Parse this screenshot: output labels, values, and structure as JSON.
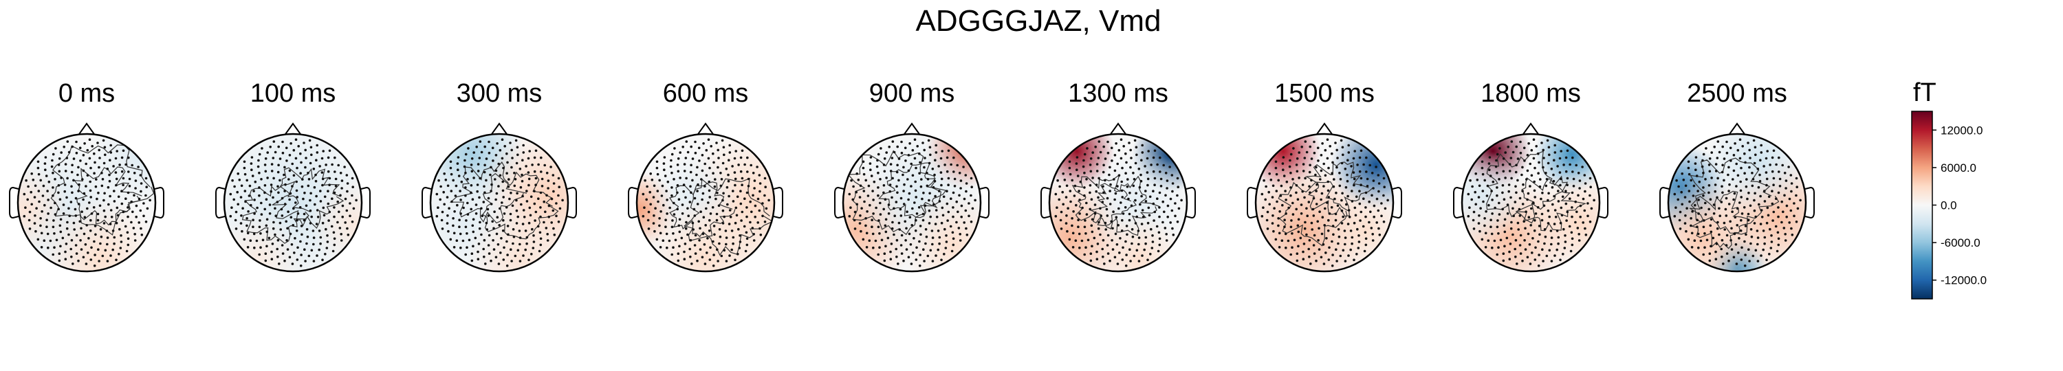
{
  "chart_data": {
    "type": "heatmap",
    "title": "ADGGGJAZ, Vmd",
    "unit_label": "fT",
    "colormap": "RdBu_r",
    "colors": {
      "max": "#67001f",
      "pos": "#e07b5f",
      "zero": "#f7f7f7",
      "neg": "#5a9bc8",
      "min": "#053061"
    },
    "clim": [
      -15000,
      15000
    ],
    "colorbar_ticks": [
      12000,
      6000,
      0,
      -6000,
      -12000
    ],
    "colorbar_tick_labels": [
      "12000.0",
      "6000.0",
      "0.0",
      "-6000.0",
      "-12000.0"
    ],
    "grid": false,
    "panels": [
      {
        "label": "0 ms",
        "time_ms": 0,
        "sources": [
          {
            "x": -0.4,
            "y": -0.1,
            "amp": -2000,
            "w": 0.5
          },
          {
            "x": 0.2,
            "y": -0.8,
            "amp": 2500,
            "w": 0.4
          },
          {
            "x": -0.9,
            "y": -0.1,
            "amp": 2000,
            "w": 0.3
          },
          {
            "x": 0.8,
            "y": 0.7,
            "amp": -2000,
            "w": 0.35
          }
        ]
      },
      {
        "label": "100 ms",
        "time_ms": 100,
        "sources": [
          {
            "x": 0.0,
            "y": 0.0,
            "amp": -2500,
            "w": 0.6
          },
          {
            "x": 0.9,
            "y": -0.3,
            "amp": 1500,
            "w": 0.3
          },
          {
            "x": -0.5,
            "y": -0.8,
            "amp": 1200,
            "w": 0.3
          }
        ]
      },
      {
        "label": "300 ms",
        "time_ms": 300,
        "sources": [
          {
            "x": -0.4,
            "y": 0.7,
            "amp": -5000,
            "w": 0.35
          },
          {
            "x": 0.7,
            "y": 0.1,
            "amp": 3500,
            "w": 0.45
          },
          {
            "x": -0.5,
            "y": -0.3,
            "amp": -1500,
            "w": 0.4
          },
          {
            "x": 0.3,
            "y": -0.8,
            "amp": 2000,
            "w": 0.35
          }
        ]
      },
      {
        "label": "600 ms",
        "time_ms": 600,
        "sources": [
          {
            "x": -0.95,
            "y": -0.1,
            "amp": 6000,
            "w": 0.25
          },
          {
            "x": 0.7,
            "y": 0.0,
            "amp": 3000,
            "w": 0.5
          },
          {
            "x": -0.2,
            "y": 0.1,
            "amp": -1500,
            "w": 0.3
          },
          {
            "x": 0.0,
            "y": -0.8,
            "amp": 2500,
            "w": 0.4
          }
        ]
      },
      {
        "label": "900 ms",
        "time_ms": 900,
        "sources": [
          {
            "x": 0.75,
            "y": 0.75,
            "amp": 9000,
            "w": 0.25
          },
          {
            "x": -0.8,
            "y": -0.4,
            "amp": 4500,
            "w": 0.4
          },
          {
            "x": 0.1,
            "y": 0.1,
            "amp": -2000,
            "w": 0.45
          },
          {
            "x": 0.6,
            "y": -0.6,
            "amp": 2500,
            "w": 0.35
          }
        ]
      },
      {
        "label": "1300 ms",
        "time_ms": 1300,
        "sources": [
          {
            "x": -0.6,
            "y": 0.75,
            "amp": 13000,
            "w": 0.25
          },
          {
            "x": 0.75,
            "y": 0.7,
            "amp": -14000,
            "w": 0.25
          },
          {
            "x": -0.7,
            "y": -0.5,
            "amp": 5000,
            "w": 0.4
          },
          {
            "x": 0.3,
            "y": 0.0,
            "amp": -1500,
            "w": 0.35
          },
          {
            "x": 0.3,
            "y": -0.8,
            "amp": 2500,
            "w": 0.3
          }
        ]
      },
      {
        "label": "1500 ms",
        "time_ms": 1500,
        "sources": [
          {
            "x": -0.6,
            "y": 0.75,
            "amp": 12000,
            "w": 0.25
          },
          {
            "x": 0.75,
            "y": 0.55,
            "amp": -13000,
            "w": 0.3
          },
          {
            "x": -0.3,
            "y": -0.4,
            "amp": 5000,
            "w": 0.45
          },
          {
            "x": 0.6,
            "y": -0.4,
            "amp": 2500,
            "w": 0.3
          }
        ]
      },
      {
        "label": "1800 ms",
        "time_ms": 1800,
        "sources": [
          {
            "x": -0.55,
            "y": 0.75,
            "amp": 15000,
            "w": 0.25
          },
          {
            "x": 0.6,
            "y": 0.7,
            "amp": -9000,
            "w": 0.25
          },
          {
            "x": -0.3,
            "y": -0.5,
            "amp": 4500,
            "w": 0.4
          },
          {
            "x": 0.7,
            "y": -0.3,
            "amp": 3000,
            "w": 0.35
          },
          {
            "x": -0.7,
            "y": 0.1,
            "amp": -2000,
            "w": 0.3
          }
        ]
      },
      {
        "label": "2500 ms",
        "time_ms": 2500,
        "sources": [
          {
            "x": -0.8,
            "y": 0.2,
            "amp": -10000,
            "w": 0.3
          },
          {
            "x": 0.0,
            "y": -0.95,
            "amp": -9000,
            "w": 0.2
          },
          {
            "x": -0.5,
            "y": -0.5,
            "amp": 4000,
            "w": 0.4
          },
          {
            "x": 0.6,
            "y": -0.2,
            "amp": 4500,
            "w": 0.4
          },
          {
            "x": 0.3,
            "y": 0.6,
            "amp": -3000,
            "w": 0.35
          }
        ]
      }
    ]
  }
}
